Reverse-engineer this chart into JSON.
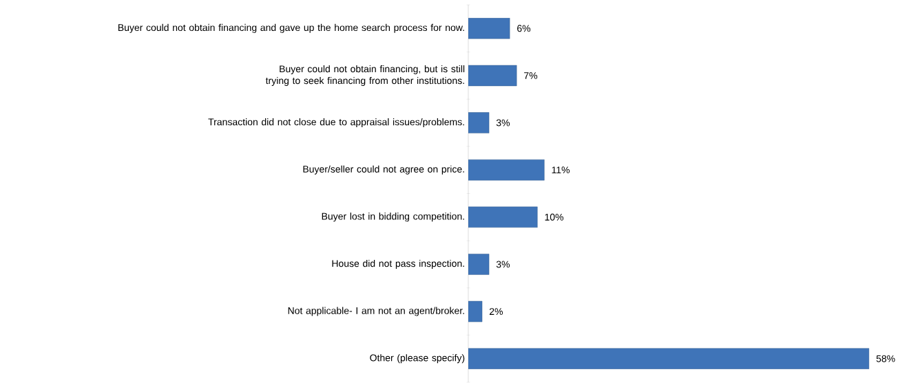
{
  "chart_data": {
    "type": "bar",
    "orientation": "horizontal",
    "categories": [
      "Buyer could not obtain financing and gave up the home search process for now.",
      "Buyer could not obtain financing, but is still trying to seek financing from other institutions.",
      "Transaction did not close due to appraisal issues/problems.",
      "Buyer/seller could not agree on price.",
      "Buyer lost in bidding competition.",
      "House did not pass inspection.",
      "Not applicable- I am not an agent/broker.",
      "Other (please specify)"
    ],
    "values": [
      6,
      7,
      3,
      11,
      10,
      3,
      2,
      58
    ],
    "value_labels": [
      "6%",
      "7%",
      "3%",
      "11%",
      "10%",
      "3%",
      "2%",
      "58%"
    ],
    "color": "#3f74b8"
  }
}
